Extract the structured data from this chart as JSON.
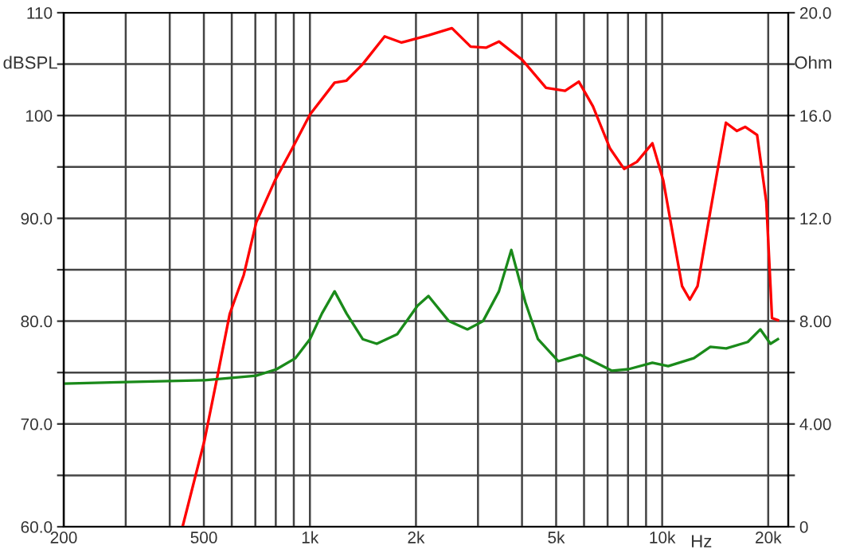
{
  "chart_data": {
    "type": "line",
    "ylabel": "dBSPL",
    "y2label": "Ohm",
    "xlabel": "Hz",
    "log": "x",
    "grid": true,
    "xlim": [
      200,
      22800
    ],
    "ylim": [
      60,
      110
    ],
    "y2lim": [
      0,
      20
    ],
    "xticks": [
      200,
      {
        "value": 300,
        "label": null
      },
      {
        "value": 400,
        "label": null
      },
      500,
      {
        "value": 600,
        "label": null
      },
      {
        "value": 700,
        "label": null
      },
      {
        "value": 800,
        "label": null
      },
      {
        "value": 900,
        "label": null
      },
      {
        "value": 1000,
        "label": "1k"
      },
      {
        "value": 2000,
        "label": "2k"
      },
      {
        "value": 3000,
        "label": null
      },
      {
        "value": 4000,
        "label": null
      },
      {
        "value": 5000,
        "label": "5k"
      },
      {
        "value": 6000,
        "label": null
      },
      {
        "value": 7000,
        "label": null
      },
      {
        "value": 8000,
        "label": null
      },
      {
        "value": 9000,
        "label": null
      },
      {
        "value": 10000,
        "label": "10k"
      },
      {
        "value": 20000,
        "label": "20k"
      }
    ],
    "yticks": [
      {
        "value": 60,
        "label": "60.0"
      },
      {
        "value": 65,
        "label": null
      },
      {
        "value": 70,
        "label": "70.0"
      },
      {
        "value": 75,
        "label": null
      },
      {
        "value": 80,
        "label": "80.0"
      },
      {
        "value": 85,
        "label": null
      },
      {
        "value": 90,
        "label": "90.0"
      },
      {
        "value": 95,
        "label": null
      },
      100,
      {
        "value": 105,
        "label": null
      },
      110
    ],
    "y2ticks": [
      0,
      {
        "value": 2,
        "label": null
      },
      {
        "value": 4,
        "label": "4.00"
      },
      {
        "value": 6,
        "label": null
      },
      {
        "value": 8,
        "label": "8.00"
      },
      {
        "value": 10,
        "label": null
      },
      {
        "value": 12,
        "label": "12.0"
      },
      {
        "value": 14,
        "label": null
      },
      {
        "value": 16,
        "label": "16.0"
      },
      {
        "value": 18,
        "label": null
      },
      {
        "value": 20,
        "label": "20.0"
      }
    ],
    "series": [
      {
        "color": "#ff0000",
        "x": [
          435,
          502,
          546,
          592,
          649,
          704,
          796,
          891,
          1000,
          1175,
          1270,
          1412,
          1630,
          1820,
          1960,
          2170,
          2530,
          2860,
          3160,
          3440,
          4010,
          4680,
          5300,
          5800,
          6360,
          7110,
          7800,
          8480,
          9380,
          10070,
          11390,
          11980,
          12600,
          13700,
          15170,
          16300,
          17200,
          18600,
          19750,
          20300,
          20500,
          21300
        ],
        "values": [
          60,
          68.4,
          74.6,
          80.7,
          84.5,
          89.6,
          93.7,
          96.8,
          100.1,
          103.2,
          103.4,
          105.0,
          107.7,
          107.1,
          107.4,
          107.8,
          108.5,
          106.7,
          106.6,
          107.2,
          105.4,
          102.7,
          102.4,
          103.3,
          100.9,
          96.8,
          94.8,
          95.5,
          97.3,
          93.7,
          83.4,
          82.1,
          83.4,
          90.7,
          99.3,
          98.5,
          98.9,
          98.1,
          91.6,
          83.4,
          80.3,
          80.1
        ]
      },
      {
        "color": "#1a8a1a",
        "axis": "y2",
        "x": [
          200,
          301,
          502,
          704,
          804,
          910,
          1000,
          1082,
          1175,
          1270,
          1412,
          1548,
          1770,
          2020,
          2170,
          2480,
          2800,
          3100,
          3440,
          3730,
          4090,
          4440,
          5070,
          5860,
          7200,
          8020,
          9380,
          10400,
          12300,
          13700,
          15200,
          17500,
          19000,
          20300,
          21300
        ],
        "values": [
          5.57,
          5.63,
          5.7,
          5.88,
          6.13,
          6.56,
          7.3,
          8.3,
          9.16,
          8.3,
          7.3,
          7.12,
          7.49,
          8.6,
          8.98,
          8.0,
          7.68,
          8.0,
          9.16,
          10.77,
          8.73,
          7.3,
          6.44,
          6.69,
          6.07,
          6.13,
          6.38,
          6.25,
          6.56,
          7.0,
          6.94,
          7.19,
          7.68,
          7.12,
          7.3
        ]
      }
    ]
  }
}
